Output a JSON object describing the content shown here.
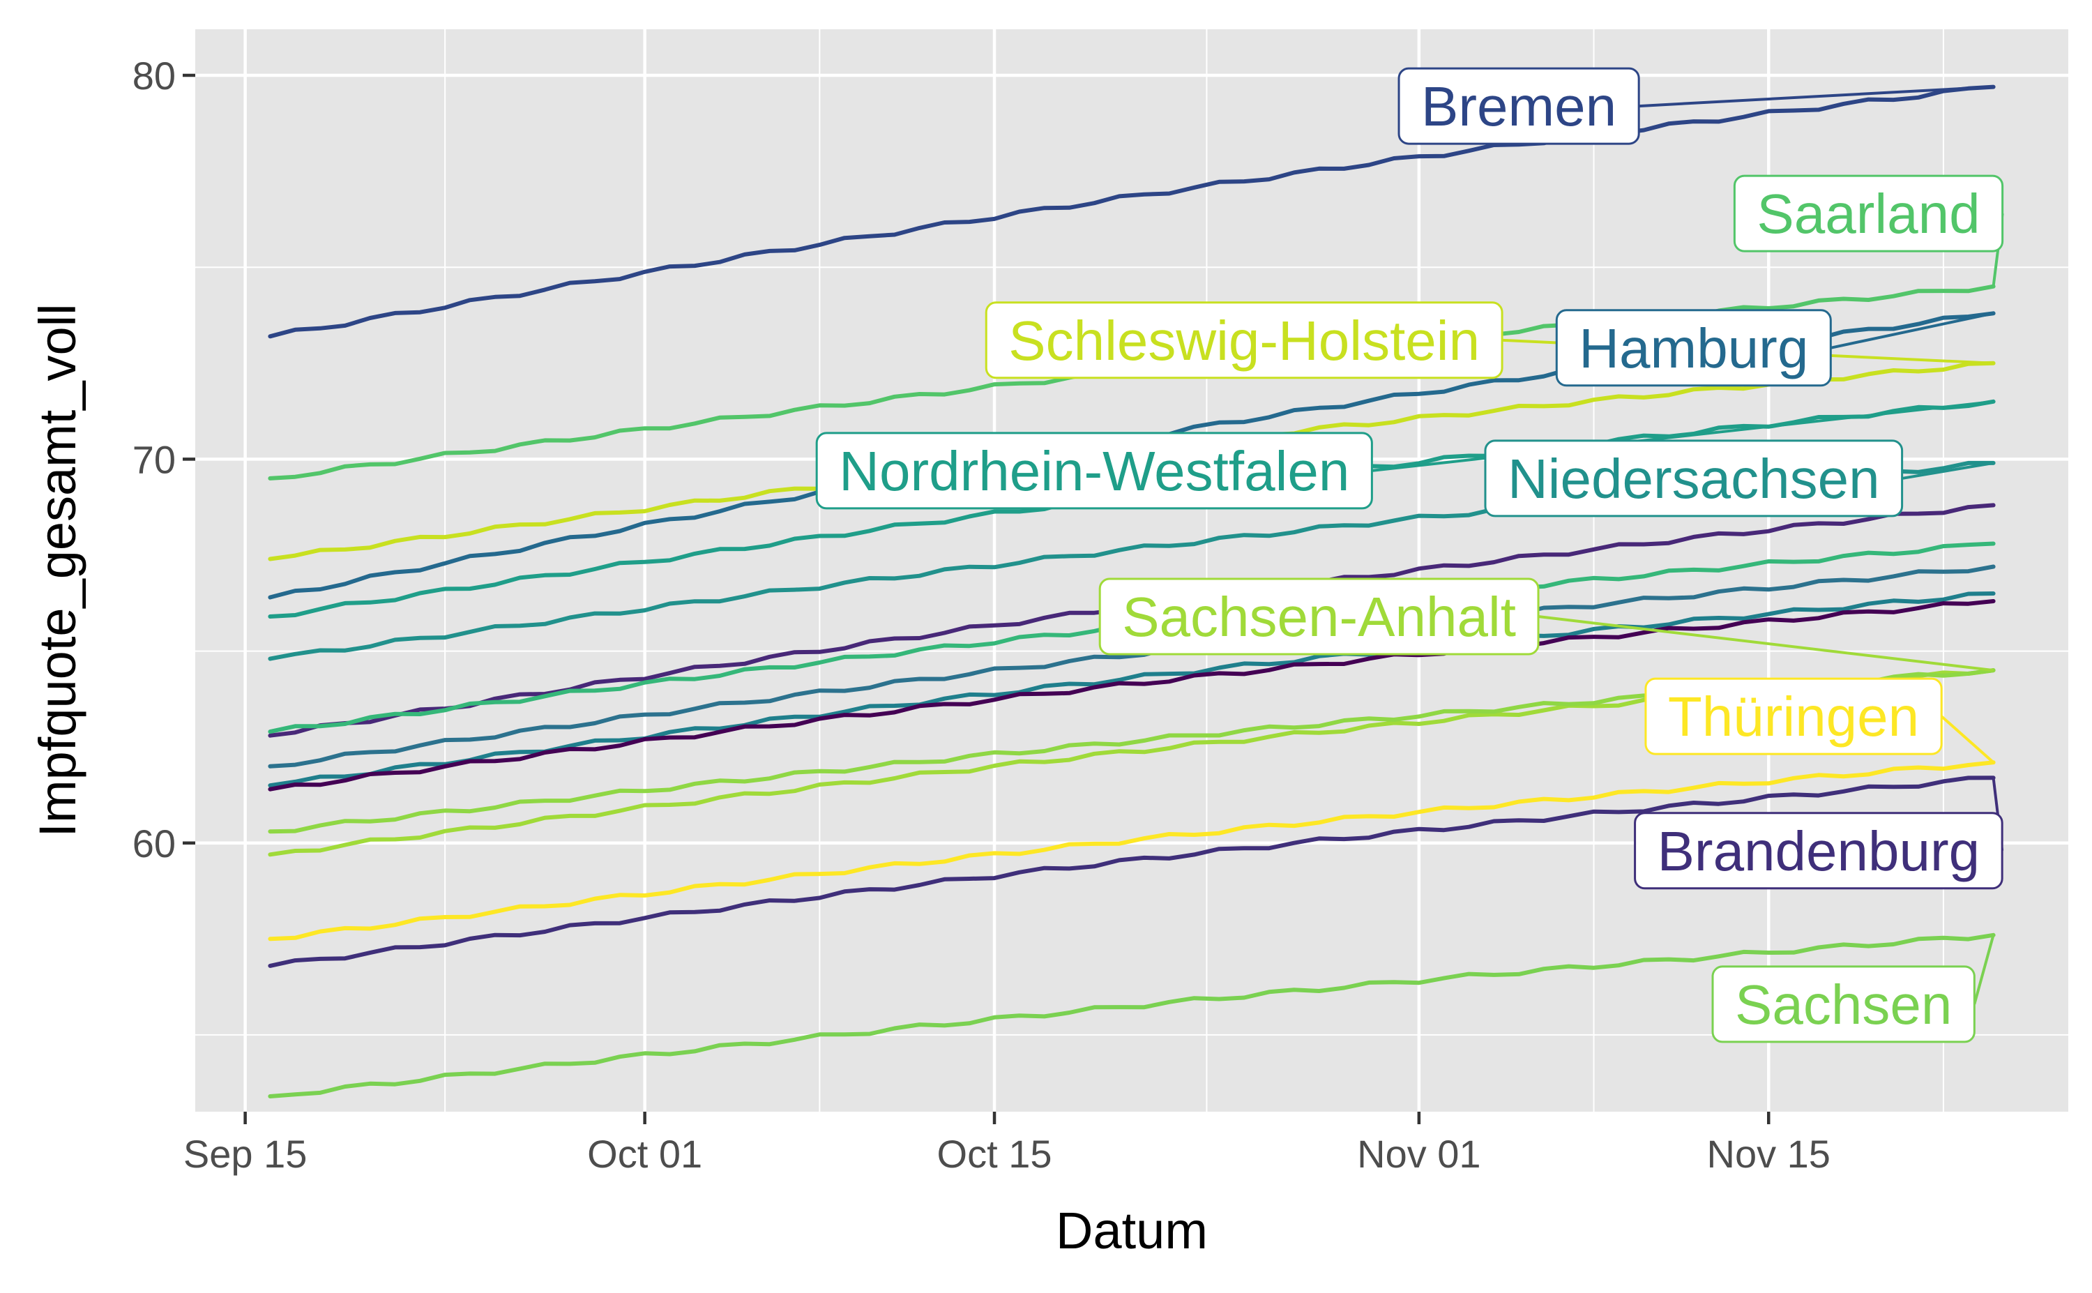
{
  "chart_data": {
    "type": "line",
    "xlabel": "Datum",
    "ylabel": "Impfquote_gesamt_voll",
    "xlim": [
      "2021-09-13",
      "2021-11-27"
    ],
    "ylim": [
      53.0,
      81.2
    ],
    "x_ticks": [
      {
        "date": "2021-09-15",
        "label": "Sep 15"
      },
      {
        "date": "2021-10-01",
        "label": "Oct 01"
      },
      {
        "date": "2021-10-15",
        "label": "Oct 15"
      },
      {
        "date": "2021-11-01",
        "label": "Nov 01"
      },
      {
        "date": "2021-11-15",
        "label": "Nov 15"
      }
    ],
    "y_ticks": [
      60,
      70,
      80
    ],
    "grid": true,
    "legend": "none",
    "series": [
      {
        "name": "Bremen",
        "color": "#2d4586",
        "start": 73.2,
        "end": 79.7,
        "labeled": true,
        "label_date": "2021-11-05",
        "label_y": 79.2
      },
      {
        "name": "Saarland",
        "color": "#52c569",
        "start": 69.5,
        "end": 74.5,
        "labeled": true,
        "label_date": "2021-11-19",
        "label_y": 76.4
      },
      {
        "name": "Schleswig-Holstein",
        "color": "#c8e020",
        "start": 67.4,
        "end": 72.5,
        "labeled": true,
        "label_date": "2021-10-25",
        "label_y": 73.1
      },
      {
        "name": "Hamburg",
        "color": "#24698e",
        "start": 66.4,
        "end": 73.8,
        "labeled": true,
        "label_date": "2021-11-12",
        "label_y": 72.9
      },
      {
        "name": "Nordrhein-Westfalen",
        "color": "#1f9e89",
        "start": 65.9,
        "end": 71.5,
        "labeled": true,
        "label_date": "2021-10-19",
        "label_y": 69.7
      },
      {
        "name": "Niedersachsen",
        "color": "#21918c",
        "start": 64.8,
        "end": 69.9,
        "labeled": true,
        "label_date": "2021-11-12",
        "label_y": 69.5
      },
      {
        "name": "Sachsen-Anhalt",
        "color": "#a0da39",
        "start": 59.7,
        "end": 64.5,
        "labeled": true,
        "label_date": "2021-10-28",
        "label_y": 65.9
      },
      {
        "name": "Thüringen",
        "color": "#fde725",
        "start": 57.5,
        "end": 62.1,
        "labeled": true,
        "label_date": "2021-11-16",
        "label_y": 63.3
      },
      {
        "name": "Brandenburg",
        "color": "#3f2f7a",
        "start": 56.8,
        "end": 61.7,
        "labeled": true,
        "label_date": "2021-11-17",
        "label_y": 59.8
      },
      {
        "name": "Sachsen",
        "color": "#7ad151",
        "start": 53.4,
        "end": 57.6,
        "labeled": true,
        "label_date": "2021-11-18",
        "label_y": 55.8
      },
      {
        "color": "#482878",
        "start": 62.8,
        "end": 68.8,
        "labeled": false
      },
      {
        "color": "#35b779",
        "start": 62.9,
        "end": 67.8,
        "labeled": false
      },
      {
        "color": "#2c728e",
        "start": 62.0,
        "end": 67.2,
        "labeled": false
      },
      {
        "color": "#1f7f8c",
        "start": 61.5,
        "end": 66.5,
        "labeled": false
      },
      {
        "color": "#440154",
        "start": 61.4,
        "end": 66.3,
        "labeled": false
      },
      {
        "color": "#8fd744",
        "start": 60.3,
        "end": 64.5,
        "labeled": false
      }
    ]
  }
}
